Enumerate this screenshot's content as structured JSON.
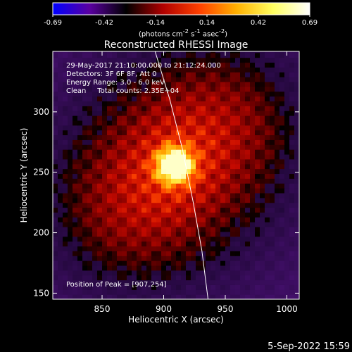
{
  "chart_data": {
    "type": "heatmap",
    "title": "Reconstructed RHESSI Image",
    "xlabel": "Heliocentric X (arcsec)",
    "ylabel": "Heliocentric Y (arcsec)",
    "xlim": [
      810,
      1010
    ],
    "ylim": [
      145,
      350
    ],
    "xticks": [
      850,
      900,
      950,
      1000
    ],
    "yticks": [
      150,
      200,
      250,
      300
    ],
    "colorbar": {
      "range": [
        -0.69,
        0.69
      ],
      "ticks": [
        "-0.69",
        "-0.42",
        "-0.14",
        "0.14",
        "0.42",
        "0.69"
      ],
      "units": "(photons cm<sup>-2</sup> s<sup>-1</sup> asec<sup>-2</sup>)",
      "colors": [
        "#0000ff",
        "#5a00a0",
        "#000000",
        "#b00000",
        "#ff4000",
        "#ffb000",
        "#ffff60",
        "#ffffff"
      ]
    },
    "annotations": [
      "29-May-2017 21:10:00.000 to 21:12:24.000",
      "Detectors: 3F 6F 8F, Att 0",
      "Energy Range: 3.0 - 6.0 keV",
      "Clean     Total counts: 2.35E+04"
    ],
    "peak_label": "Position of Peak = [907,254]",
    "peak": [
      907,
      254
    ],
    "limb_curve": [
      [
        893,
        350
      ],
      [
        905,
        310
      ],
      [
        915,
        270
      ],
      [
        924,
        225
      ],
      [
        931,
        185
      ],
      [
        936,
        145
      ]
    ],
    "timestamp": "5-Sep-2022 15:59"
  }
}
